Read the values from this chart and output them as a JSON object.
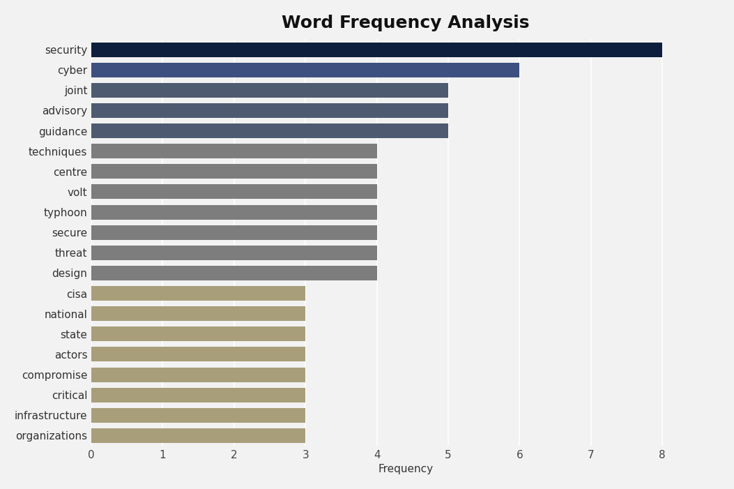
{
  "title": "Word Frequency Analysis",
  "categories": [
    "security",
    "cyber",
    "joint",
    "advisory",
    "guidance",
    "techniques",
    "centre",
    "volt",
    "typhoon",
    "secure",
    "threat",
    "design",
    "cisa",
    "national",
    "state",
    "actors",
    "compromise",
    "critical",
    "infrastructure",
    "organizations"
  ],
  "values": [
    8,
    6,
    5,
    5,
    5,
    4,
    4,
    4,
    4,
    4,
    4,
    4,
    3,
    3,
    3,
    3,
    3,
    3,
    3,
    3
  ],
  "colors": [
    "#0d1f3c",
    "#3d5080",
    "#4e5a70",
    "#4e5a70",
    "#4e5a70",
    "#7d7d7d",
    "#7d7d7d",
    "#7d7d7d",
    "#7d7d7d",
    "#7d7d7d",
    "#7d7d7d",
    "#7d7d7d",
    "#a89f7a",
    "#a89f7a",
    "#a89f7a",
    "#a89f7a",
    "#a89f7a",
    "#a89f7a",
    "#a89f7a",
    "#a89f7a"
  ],
  "xlabel": "Frequency",
  "xlim": [
    0,
    8.8
  ],
  "xticks": [
    0,
    1,
    2,
    3,
    4,
    5,
    6,
    7,
    8
  ],
  "background_color": "#f2f2f2",
  "title_fontsize": 18,
  "label_fontsize": 11,
  "tick_fontsize": 11,
  "bar_height": 0.72
}
